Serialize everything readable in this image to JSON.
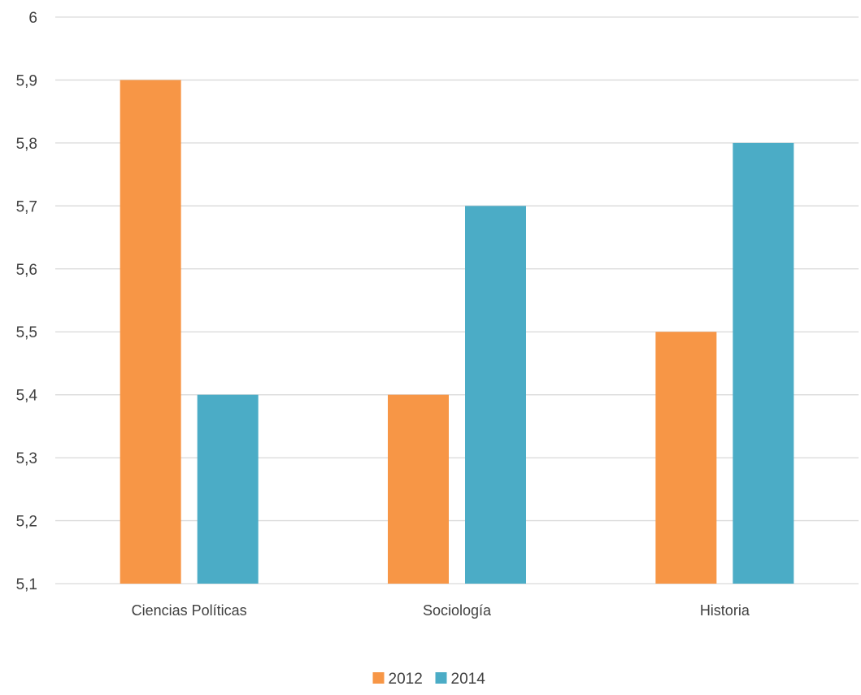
{
  "chart_data": {
    "type": "bar",
    "title": "",
    "xlabel": "",
    "ylabel": "",
    "categories": [
      "Ciencias Políticas",
      "Sociología",
      "Historia"
    ],
    "series": [
      {
        "name": "2012",
        "values": [
          5.9,
          5.4,
          5.5
        ],
        "color": "#f79646"
      },
      {
        "name": "2014",
        "values": [
          5.4,
          5.7,
          5.8
        ],
        "color": "#4bacc6"
      }
    ],
    "ylim": [
      5.1,
      6
    ],
    "yticks": [
      "5,1",
      "5,2",
      "5,3",
      "5,4",
      "5,5",
      "5,6",
      "5,7",
      "5,8",
      "5,9",
      "6"
    ],
    "grid": true,
    "legend_position": "bottom"
  }
}
